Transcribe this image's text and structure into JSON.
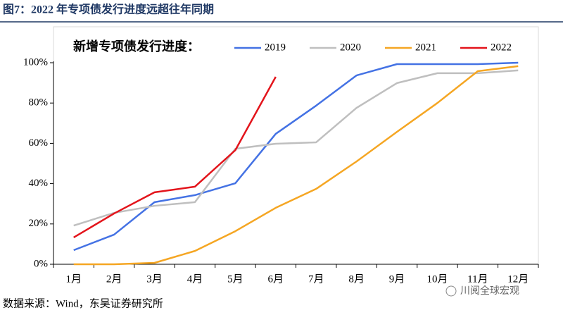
{
  "chart_data": {
    "type": "line",
    "title": "图7：2022 年专项债发行进度远超往年同期",
    "legend_title": "新增专项债发行进度：",
    "source": "数据来源：Wind，东吴证券研究所",
    "watermark": "川阅全球宏观",
    "categories": [
      "1月",
      "2月",
      "3月",
      "4月",
      "5月",
      "6月",
      "7月",
      "8月",
      "9月",
      "10月",
      "11月",
      "12月"
    ],
    "series": [
      {
        "name": "2019",
        "color": "#4472e4",
        "values": [
          7,
          14.7,
          30.8,
          34.3,
          40.2,
          64.7,
          78.7,
          93.7,
          99.3,
          99.3,
          99.3,
          100
        ]
      },
      {
        "name": "2020",
        "color": "#bfbfbf",
        "values": [
          19.2,
          25.5,
          29,
          30.8,
          57.3,
          59.8,
          60.5,
          77.6,
          89.9,
          94.8,
          94.8,
          96.2
        ]
      },
      {
        "name": "2021",
        "color": "#f5a623",
        "values": [
          0,
          0,
          0.7,
          6.6,
          16.4,
          28,
          37.4,
          51,
          65.7,
          80,
          95.8,
          98.3
        ]
      },
      {
        "name": "2022",
        "color": "#e3141b",
        "values": [
          13.3,
          25.2,
          35.7,
          38.5,
          56.6,
          93,
          null,
          null,
          null,
          null,
          null,
          null
        ]
      }
    ],
    "ylim": [
      0,
      100
    ],
    "yticks": [
      {
        "value": 0,
        "label": "0%"
      },
      {
        "value": 20,
        "label": "20%"
      },
      {
        "value": 40,
        "label": "40%"
      },
      {
        "value": 60,
        "label": "60%"
      },
      {
        "value": 80,
        "label": "80%"
      },
      {
        "value": 100,
        "label": "100%"
      }
    ]
  }
}
